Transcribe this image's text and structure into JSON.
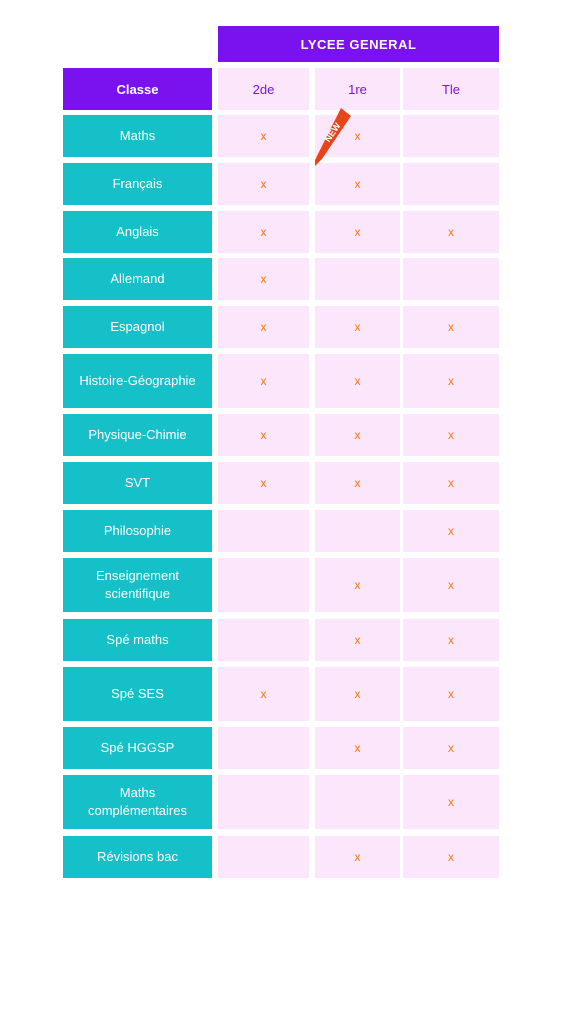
{
  "header": {
    "title": "LYCEE GENERAL"
  },
  "table": {
    "class_header": "Classe",
    "columns": [
      "2de",
      "1re",
      "Tle"
    ],
    "rows": [
      {
        "label": "Maths",
        "marks": [
          "x",
          "x",
          ""
        ]
      },
      {
        "label": "Français",
        "marks": [
          "x",
          "x",
          ""
        ]
      },
      {
        "label": "Anglais",
        "marks": [
          "x",
          "x",
          "x"
        ]
      },
      {
        "label": "Allemand",
        "marks": [
          "x",
          "",
          ""
        ]
      },
      {
        "label": "Espagnol",
        "marks": [
          "x",
          "x",
          "x"
        ]
      },
      {
        "label": "Histoire-Géographie",
        "marks": [
          "x",
          "x",
          "x"
        ]
      },
      {
        "label": "Physique-Chimie",
        "marks": [
          "x",
          "x",
          "x"
        ]
      },
      {
        "label": "SVT",
        "marks": [
          "x",
          "x",
          "x"
        ]
      },
      {
        "label": "Philosophie",
        "marks": [
          "",
          "",
          "x"
        ]
      },
      {
        "label": "Enseignement scientifique",
        "marks": [
          "",
          "x",
          "x"
        ]
      },
      {
        "label": "Spé maths",
        "marks": [
          "",
          "x",
          "x"
        ]
      },
      {
        "label": "Spé SES",
        "marks": [
          "x",
          "x",
          "x"
        ]
      },
      {
        "label": "Spé HGGSP",
        "marks": [
          "",
          "x",
          "x"
        ]
      },
      {
        "label": "Maths complémentaires",
        "marks": [
          "",
          "",
          "x"
        ]
      },
      {
        "label": "Révisions bac",
        "marks": [
          "",
          "x",
          "x"
        ]
      }
    ]
  },
  "badge": {
    "text": "NEW"
  },
  "colors": {
    "header_purple": "#7a12f0",
    "label_teal": "#16c0c8",
    "cell_pink": "#fbe6fb",
    "mark_orange": "#f47a0c",
    "ribbon_red": "#e8441a"
  }
}
